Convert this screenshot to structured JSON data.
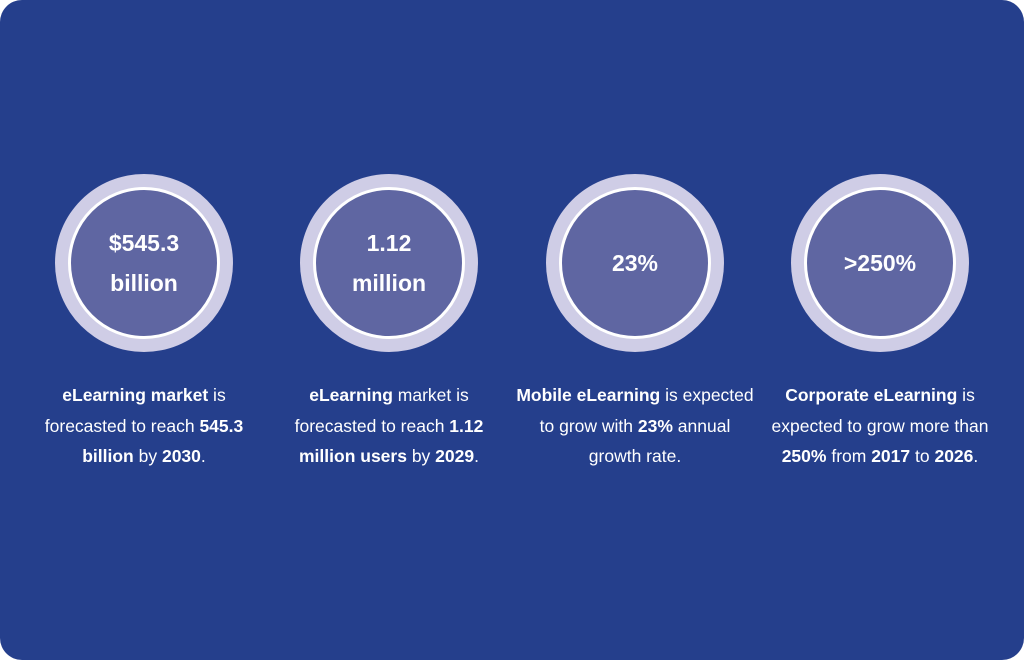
{
  "stats": [
    {
      "value_lines": [
        "$545.3",
        "billion"
      ],
      "caption": {
        "p1": "eLearning market",
        "p2": " is forecasted to reach ",
        "p3": "545.3 billion",
        "p4": " by ",
        "p5": "2030",
        "p6": "."
      }
    },
    {
      "value_lines": [
        "1.12",
        "million"
      ],
      "caption": {
        "p1": "eLearning",
        "p2": " market is forecasted to reach ",
        "p3": "1.12 million users",
        "p4": " by ",
        "p5": "2029",
        "p6": "."
      }
    },
    {
      "value_lines": [
        "23%"
      ],
      "caption": {
        "p1": "Mobile eLearning",
        "p2": " is expected to grow with ",
        "p3": "23%",
        "p4": " annual growth rate."
      }
    },
    {
      "value_lines": [
        ">250%"
      ],
      "caption": {
        "p1": "Corporate eLearning",
        "p2": " is expected to grow more than ",
        "p3": "250%",
        "p4": " from ",
        "p5": "2017",
        "p6": " to ",
        "p7": "2026",
        "p8": "."
      }
    }
  ],
  "colors": {
    "background": "#253f8c",
    "ring_outer": "#cfcde6",
    "ring_inner": "#5f66a2",
    "text": "#ffffff"
  }
}
